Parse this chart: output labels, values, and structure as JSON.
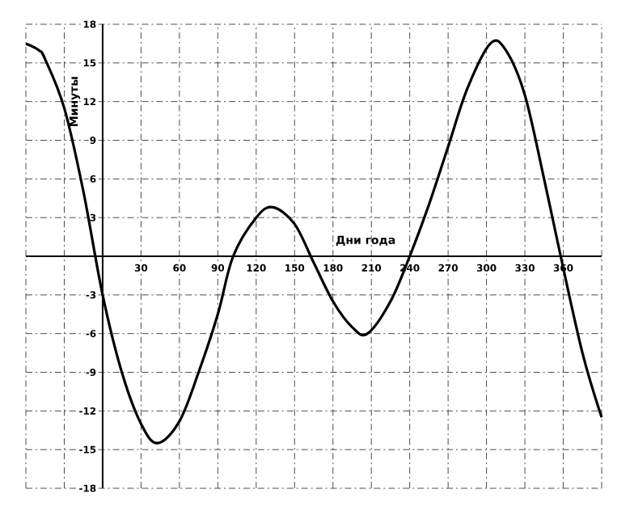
{
  "chart_data": {
    "type": "line",
    "xlabel": "Дни года",
    "ylabel": "Минуты",
    "x": [
      -60,
      -50,
      -45,
      -30,
      -15,
      0,
      15,
      30,
      43,
      60,
      75,
      90,
      102,
      120,
      133,
      150,
      165,
      180,
      195,
      207,
      225,
      240,
      255,
      270,
      285,
      303,
      315,
      330,
      345,
      358,
      375,
      390
    ],
    "series": [
      {
        "color": "#000000",
        "values": [
          16.5,
          16,
          15.3,
          11.5,
          5,
          -3,
          -9,
          -13,
          -14.5,
          -12.8,
          -9,
          -4.5,
          0,
          3,
          3.8,
          2.5,
          -0.5,
          -3.5,
          -5.5,
          -6,
          -3.5,
          0,
          4,
          8.5,
          13,
          16.5,
          16,
          12.5,
          6,
          0,
          -7.5,
          -12.5
        ]
      }
    ],
    "xlim": [
      -60,
      390
    ],
    "ylim": [
      -18,
      18
    ],
    "xticks": [
      {
        "value": -60,
        "label": null
      },
      {
        "value": -30,
        "label": null
      },
      {
        "value": 0,
        "label": null
      },
      30,
      60,
      90,
      120,
      150,
      180,
      210,
      240,
      270,
      300,
      330,
      360,
      {
        "value": 390,
        "label": null
      }
    ],
    "yticks": [
      -18,
      -15,
      -12,
      -9,
      -6,
      -3,
      {
        "value": 0,
        "label": null
      },
      3,
      6,
      9,
      12,
      15,
      18
    ],
    "grid": true,
    "marker": "none",
    "line_style": "solid"
  }
}
